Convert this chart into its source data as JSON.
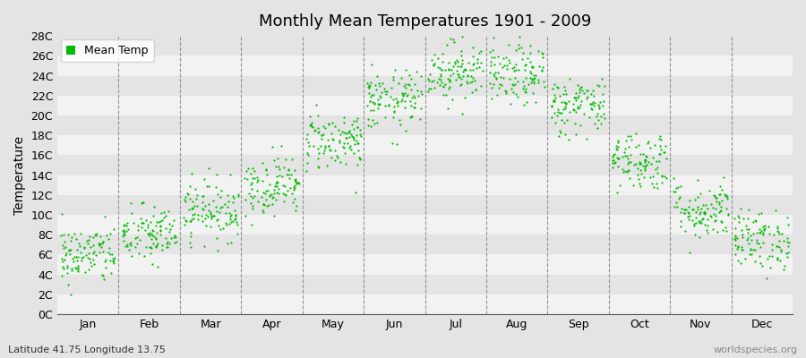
{
  "title": "Monthly Mean Temperatures 1901 - 2009",
  "ylabel": "Temperature",
  "bottom_left": "Latitude 41.75 Longitude 13.75",
  "bottom_right": "worldspecies.org",
  "legend_label": "Mean Temp",
  "dot_color": "#00bb00",
  "background_color": "#e4e4e4",
  "stripe_color": "#f2f2f2",
  "ylim": [
    0,
    28
  ],
  "ytick_step": 2,
  "months": [
    "Jan",
    "Feb",
    "Mar",
    "Apr",
    "May",
    "Jun",
    "Jul",
    "Aug",
    "Sep",
    "Oct",
    "Nov",
    "Dec"
  ],
  "mean_temps": [
    6.0,
    8.0,
    10.5,
    13.0,
    17.5,
    21.5,
    24.5,
    24.0,
    21.0,
    15.5,
    10.5,
    7.5
  ],
  "std_temps": [
    1.5,
    1.5,
    1.5,
    1.5,
    1.5,
    1.5,
    1.5,
    1.5,
    1.5,
    1.5,
    1.5,
    1.5
  ],
  "n_years": 109,
  "seed": 42
}
